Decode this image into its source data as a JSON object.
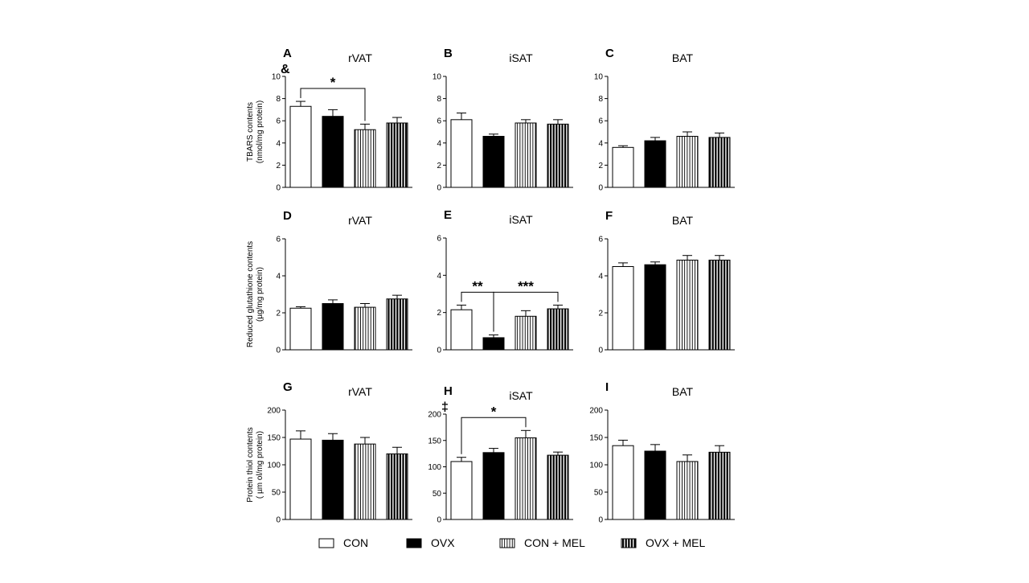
{
  "legend": [
    {
      "label": "CON",
      "pattern": "open"
    },
    {
      "label": "OVX",
      "pattern": "solid"
    },
    {
      "label": "CON + MEL",
      "pattern": "thin-stripes"
    },
    {
      "label": "OVX + MEL",
      "pattern": "thick-stripes"
    }
  ],
  "colors": {
    "bar_stroke": "#000000",
    "solid_fill": "#000000",
    "open_fill": "#ffffff"
  },
  "row_ylabels": [
    [
      "TBARS contents",
      "(nmol/mg protein)"
    ],
    [
      "Reduced glutathione contents",
      "(µg/mg protein)"
    ],
    [
      "Protein thiol contents",
      "( µm ol/mg protein)"
    ]
  ],
  "chart_data": [
    {
      "type": "bar",
      "panel": "A",
      "title": "rVAT",
      "mark": "&",
      "categories": [
        "CON",
        "OVX",
        "CON + MEL",
        "OVX + MEL"
      ],
      "values": [
        7.3,
        6.4,
        5.2,
        5.8
      ],
      "errors": [
        0.45,
        0.6,
        0.5,
        0.5
      ],
      "ylim": [
        0,
        10
      ],
      "yticks": [
        0,
        2,
        4,
        6,
        8,
        10
      ],
      "significance": [
        {
          "from": 0,
          "to": 2,
          "label": "*"
        }
      ]
    },
    {
      "type": "bar",
      "panel": "B",
      "title": "iSAT",
      "mark": "",
      "categories": [
        "CON",
        "OVX",
        "CON + MEL",
        "OVX + MEL"
      ],
      "values": [
        6.1,
        4.6,
        5.8,
        5.7
      ],
      "errors": [
        0.6,
        0.2,
        0.3,
        0.4
      ],
      "ylim": [
        0,
        10
      ],
      "yticks": [
        0,
        2,
        4,
        6,
        8,
        10
      ],
      "significance": []
    },
    {
      "type": "bar",
      "panel": "C",
      "title": "BAT",
      "mark": "",
      "categories": [
        "CON",
        "OVX",
        "CON + MEL",
        "OVX + MEL"
      ],
      "values": [
        3.6,
        4.2,
        4.6,
        4.5
      ],
      "errors": [
        0.15,
        0.3,
        0.4,
        0.4
      ],
      "ylim": [
        0,
        10
      ],
      "yticks": [
        0,
        2,
        4,
        6,
        8,
        10
      ],
      "significance": []
    },
    {
      "type": "bar",
      "panel": "D",
      "title": "rVAT",
      "mark": "",
      "categories": [
        "CON",
        "OVX",
        "CON + MEL",
        "OVX + MEL"
      ],
      "values": [
        2.25,
        2.5,
        2.3,
        2.75
      ],
      "errors": [
        0.08,
        0.2,
        0.2,
        0.2
      ],
      "ylim": [
        0,
        6
      ],
      "yticks": [
        0,
        2,
        4,
        6
      ],
      "significance": []
    },
    {
      "type": "bar",
      "panel": "E",
      "title": "iSAT",
      "mark": "",
      "categories": [
        "CON",
        "OVX",
        "CON + MEL",
        "OVX + MEL"
      ],
      "values": [
        2.15,
        0.65,
        1.8,
        2.2
      ],
      "errors": [
        0.25,
        0.15,
        0.3,
        0.2
      ],
      "ylim": [
        0,
        6
      ],
      "yticks": [
        0,
        2,
        4,
        6
      ],
      "significance": [
        {
          "from": 0,
          "to": 1,
          "label": "**"
        },
        {
          "from": 1,
          "to": 3,
          "label": "***"
        }
      ]
    },
    {
      "type": "bar",
      "panel": "F",
      "title": "BAT",
      "mark": "",
      "categories": [
        "CON",
        "OVX",
        "CON + MEL",
        "OVX + MEL"
      ],
      "values": [
        4.5,
        4.6,
        4.85,
        4.85
      ],
      "errors": [
        0.2,
        0.15,
        0.25,
        0.25
      ],
      "ylim": [
        0,
        6
      ],
      "yticks": [
        0,
        2,
        4,
        6
      ],
      "significance": []
    },
    {
      "type": "bar",
      "panel": "G",
      "title": "rVAT",
      "mark": "",
      "categories": [
        "CON",
        "OVX",
        "CON + MEL",
        "OVX + MEL"
      ],
      "values": [
        147,
        145,
        138,
        120
      ],
      "errors": [
        15,
        12,
        12,
        12
      ],
      "ylim": [
        0,
        200
      ],
      "yticks": [
        0,
        50,
        100,
        150,
        200
      ],
      "significance": []
    },
    {
      "type": "bar",
      "panel": "H",
      "title": "iSAT",
      "mark": "‡",
      "categories": [
        "CON",
        "OVX",
        "CON + MEL",
        "OVX + MEL"
      ],
      "values": [
        110,
        127,
        155,
        122
      ],
      "errors": [
        8,
        8,
        14,
        6
      ],
      "ylim": [
        0,
        200
      ],
      "yticks": [
        0,
        50,
        100,
        150,
        200
      ],
      "significance": [
        {
          "from": 0,
          "to": 2,
          "label": "*"
        }
      ]
    },
    {
      "type": "bar",
      "panel": "I",
      "title": "BAT",
      "mark": "",
      "categories": [
        "CON",
        "OVX",
        "CON + MEL",
        "OVX + MEL"
      ],
      "values": [
        135,
        125,
        106,
        123
      ],
      "errors": [
        10,
        12,
        12,
        12
      ],
      "ylim": [
        0,
        200
      ],
      "yticks": [
        0,
        50,
        100,
        150,
        200
      ],
      "significance": []
    }
  ]
}
